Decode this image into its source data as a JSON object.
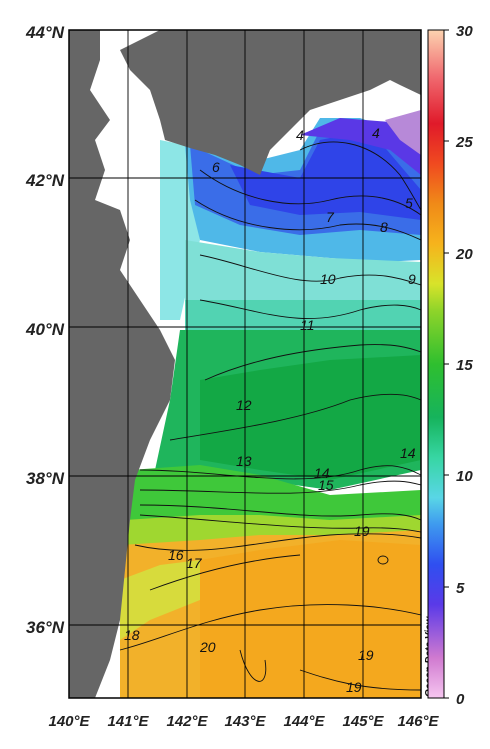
{
  "map": {
    "lat_labels": [
      "44°N",
      "42°N",
      "40°N",
      "38°N",
      "36°N"
    ],
    "lon_labels": [
      "140°E",
      "141°E",
      "142°E",
      "143°E",
      "144°E",
      "145°E",
      "146°E"
    ],
    "lon_range": [
      140,
      146
    ],
    "lat_range": [
      35,
      44
    ],
    "contour_labels": [
      "4",
      "4",
      "5",
      "6",
      "7",
      "8",
      "9",
      "10",
      "11",
      "12",
      "13",
      "14",
      "14",
      "15",
      "16",
      "17",
      "18",
      "19",
      "19",
      "19",
      "20"
    ],
    "watermark": "Ocean Data View",
    "colors": {
      "land": "#666666",
      "background": "#ffffff"
    }
  },
  "colorbar": {
    "tick_labels": [
      "30",
      "25",
      "20",
      "15",
      "10",
      "5",
      "0"
    ],
    "range": [
      0,
      30
    ]
  }
}
